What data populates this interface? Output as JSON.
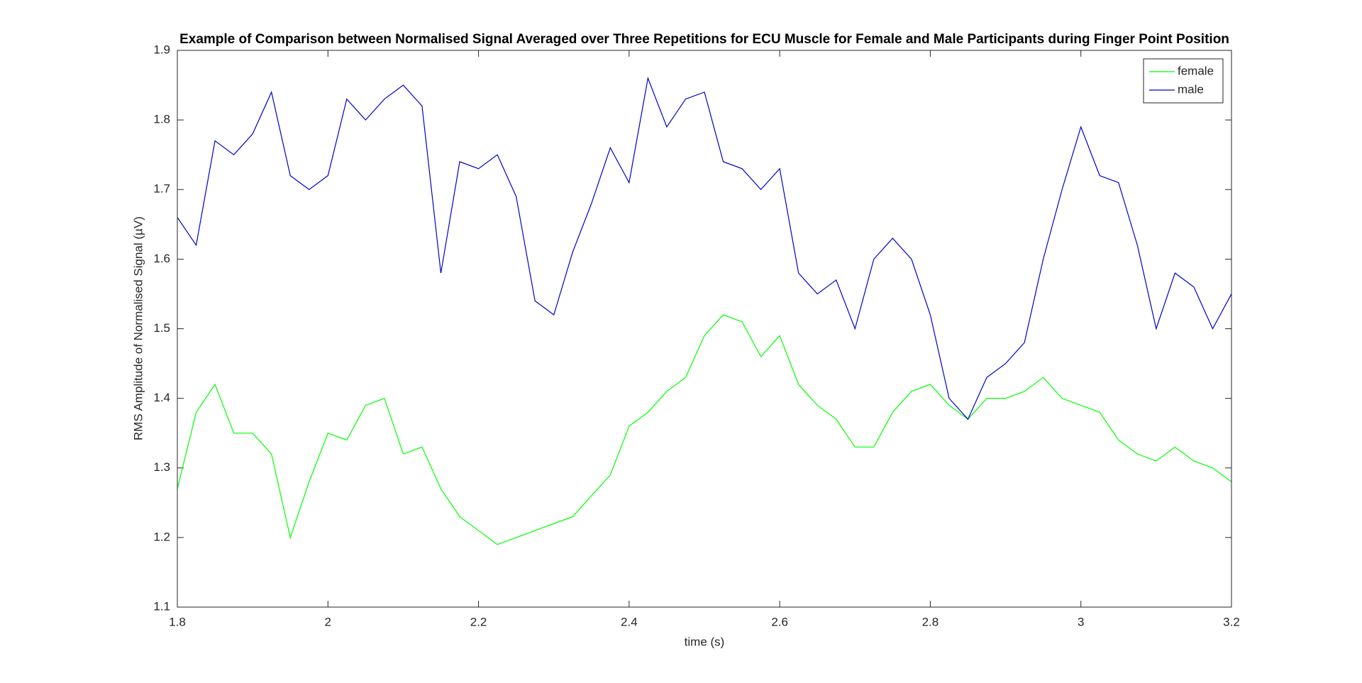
{
  "chart_data": {
    "type": "line",
    "title": "Example of Comparison between Normalised Signal Averaged over Three Repetitions for ECU Muscle for Female and Male Participants during Finger Point Position",
    "xlabel": "time (s)",
    "ylabel": "RMS Amplitude of Normalised Signal (µV)",
    "x": [
      1.8,
      1.825,
      1.85,
      1.875,
      1.9,
      1.925,
      1.95,
      1.975,
      2.0,
      2.025,
      2.05,
      2.075,
      2.1,
      2.125,
      2.15,
      2.175,
      2.2,
      2.225,
      2.25,
      2.275,
      2.3,
      2.325,
      2.35,
      2.375,
      2.4,
      2.425,
      2.45,
      2.475,
      2.5,
      2.525,
      2.55,
      2.575,
      2.6,
      2.625,
      2.65,
      2.675,
      2.7,
      2.725,
      2.75,
      2.775,
      2.8,
      2.825,
      2.85,
      2.875,
      2.9,
      2.925,
      2.95,
      2.975,
      3.0,
      3.025,
      3.05,
      3.075,
      3.1,
      3.125,
      3.15,
      3.175,
      3.2
    ],
    "series": [
      {
        "name": "female",
        "color": "#00ff00",
        "values": [
          1.27,
          1.38,
          1.42,
          1.35,
          1.35,
          1.32,
          1.2,
          1.28,
          1.35,
          1.34,
          1.39,
          1.4,
          1.32,
          1.33,
          1.27,
          1.23,
          1.21,
          1.19,
          1.2,
          1.21,
          1.22,
          1.23,
          1.26,
          1.29,
          1.36,
          1.38,
          1.41,
          1.43,
          1.49,
          1.52,
          1.51,
          1.46,
          1.49,
          1.42,
          1.39,
          1.37,
          1.33,
          1.33,
          1.38,
          1.41,
          1.42,
          1.39,
          1.37,
          1.4,
          1.4,
          1.41,
          1.43,
          1.4,
          1.39,
          1.38,
          1.34,
          1.32,
          1.31,
          1.33,
          1.31,
          1.3,
          1.28
        ]
      },
      {
        "name": "male",
        "color": "#0000cc",
        "values": [
          1.66,
          1.62,
          1.77,
          1.75,
          1.78,
          1.84,
          1.72,
          1.7,
          1.72,
          1.83,
          1.8,
          1.83,
          1.85,
          1.82,
          1.58,
          1.74,
          1.73,
          1.75,
          1.69,
          1.54,
          1.52,
          1.61,
          1.68,
          1.76,
          1.71,
          1.86,
          1.79,
          1.83,
          1.84,
          1.74,
          1.73,
          1.7,
          1.73,
          1.58,
          1.55,
          1.57,
          1.5,
          1.6,
          1.63,
          1.6,
          1.52,
          1.4,
          1.37,
          1.43,
          1.45,
          1.48,
          1.6,
          1.7,
          1.79,
          1.72,
          1.71,
          1.62,
          1.5,
          1.58,
          1.56,
          1.5,
          1.55
        ]
      }
    ],
    "xlim": [
      1.8,
      3.2
    ],
    "xticks": [
      1.8,
      2,
      2.2,
      2.4,
      2.6,
      2.8,
      3,
      3.2
    ],
    "ylim": [
      1.1,
      1.9
    ],
    "yticks": [
      1.1,
      1.2,
      1.3,
      1.4,
      1.5,
      1.6,
      1.7,
      1.8,
      1.9
    ],
    "grid": false,
    "legend": "top-right"
  }
}
